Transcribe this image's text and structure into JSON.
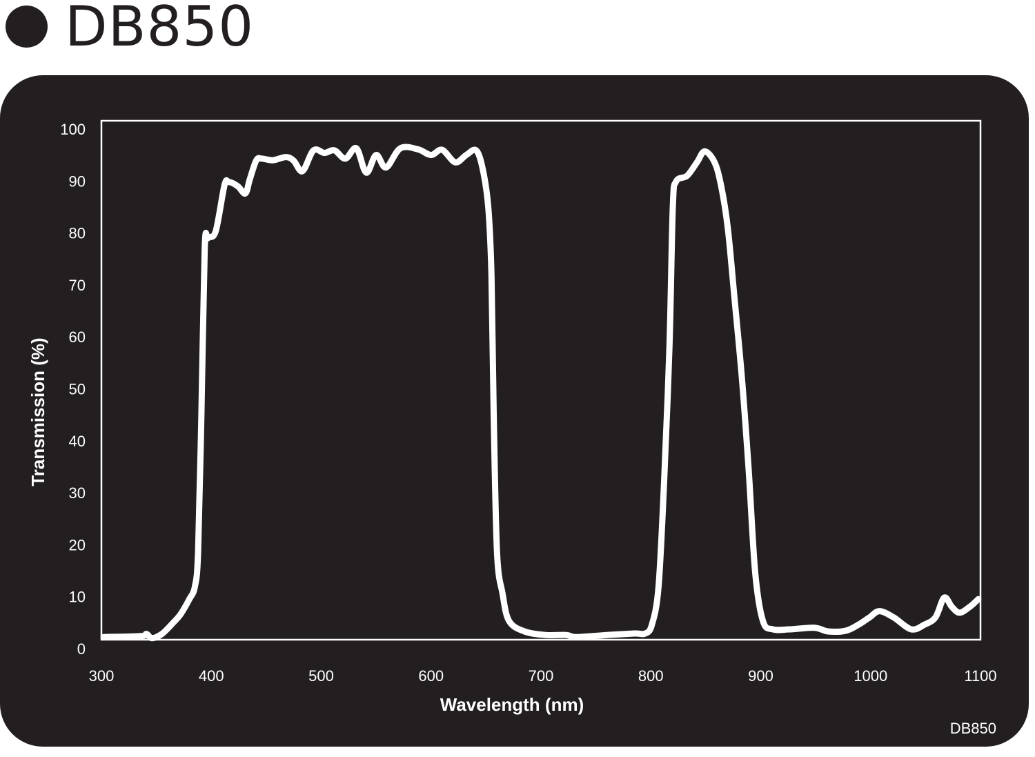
{
  "header": {
    "title": "DB850",
    "bullet_icon": "filled-circle"
  },
  "footer": {
    "product_code": "DB850"
  },
  "colors": {
    "panel_background": "#231f20",
    "line": "#ffffff",
    "title_text": "#231f20"
  },
  "chart_data": {
    "type": "line",
    "title": "DB850",
    "xlabel": "Wavelength (nm)",
    "ylabel": "Transmission (%)",
    "xlim": [
      300,
      1100
    ],
    "ylim": [
      0,
      100
    ],
    "x_ticks": [
      300,
      400,
      500,
      600,
      700,
      800,
      900,
      1000,
      1100
    ],
    "y_ticks": [
      0,
      10,
      20,
      30,
      40,
      50,
      60,
      70,
      80,
      90,
      100
    ],
    "grid": false,
    "legend": null,
    "annotation": "DB850",
    "series": [
      {
        "name": "DB850 transmission",
        "x": [
          302,
          336,
          341,
          346,
          355,
          365,
          372,
          380,
          385,
          388,
          391,
          394,
          397,
          404,
          412,
          416,
          424,
          431,
          435,
          441,
          446,
          456,
          468,
          475,
          483,
          493,
          503,
          512,
          522,
          532,
          541,
          550,
          559,
          572,
          588,
          600,
          610,
          622,
          632,
          641,
          647,
          652,
          655,
          657,
          660,
          665,
          671,
          685,
          704,
          723,
          732,
          760,
          785,
          795,
          801,
          807,
          812,
          817,
          820,
          823,
          833,
          842,
          849,
          858,
          864,
          870,
          876,
          883,
          889,
          895,
          902,
          911,
          927,
          949,
          961,
          977,
          989,
          999,
          1008,
          1021,
          1037,
          1049,
          1059,
          1067,
          1074,
          1081,
          1090,
          1098
        ],
        "y": [
          0.5,
          0.7,
          1.1,
          0.3,
          1.1,
          3.2,
          4.9,
          7.8,
          10.2,
          16.9,
          43.5,
          75.4,
          77.4,
          78.7,
          87.6,
          88.2,
          87.4,
          86.0,
          88.7,
          92.4,
          92.7,
          92.4,
          93.0,
          92.3,
          90.3,
          94.3,
          93.8,
          94.3,
          92.7,
          94.7,
          90.0,
          93.4,
          91.0,
          94.7,
          94.5,
          93.4,
          94.4,
          92.0,
          93.4,
          94.3,
          90.7,
          83.4,
          70.1,
          43.5,
          16.9,
          8.9,
          3.6,
          1.6,
          0.9,
          0.9,
          0.5,
          0.9,
          1.2,
          1.2,
          2.9,
          10.2,
          30.2,
          56.8,
          83.4,
          88.3,
          89.4,
          92.0,
          94.1,
          92.0,
          87.4,
          79.4,
          66.1,
          50.1,
          32.8,
          12.9,
          3.6,
          2.0,
          2.0,
          2.3,
          1.6,
          1.7,
          2.9,
          4.3,
          5.5,
          4.3,
          2.0,
          2.9,
          4.3,
          8.1,
          6.3,
          5.2,
          6.3,
          7.8
        ]
      }
    ]
  }
}
